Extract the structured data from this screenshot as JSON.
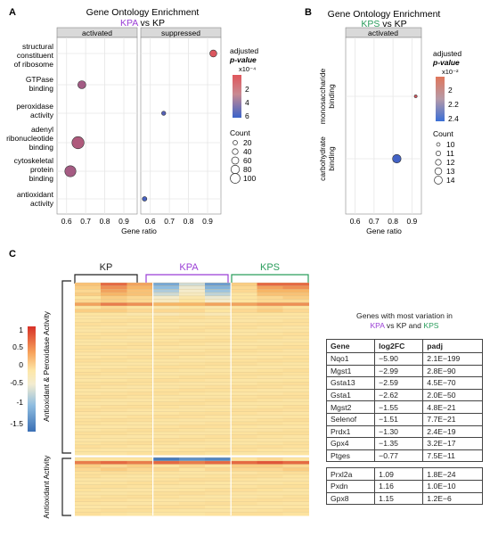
{
  "panels": {
    "a_label": "A",
    "b_label": "B",
    "c_label": "C"
  },
  "panel_a": {
    "title": "Gene Ontology Enrichment",
    "subtitle_left": "KPA",
    "subtitle_vs": " vs ",
    "subtitle_right": "KP",
    "facet_left": "activated",
    "facet_right": "suppressed",
    "xlabel": "Gene ratio",
    "colorbar_title_1": "adjusted",
    "colorbar_title_2": "p-value",
    "colorbar_exp": "x10⁻⁴",
    "colorbar_ticks": [
      "2",
      "4",
      "6"
    ],
    "size_title": "Count",
    "size_ticks": [
      "20",
      "40",
      "60",
      "80",
      "100"
    ]
  },
  "panel_b": {
    "title": "Gene Ontology Enrichment",
    "subtitle_left": "KPS",
    "subtitle_vs": " vs ",
    "subtitle_right": "KP",
    "facet": "activated",
    "xlabel": "Gene ratio",
    "colorbar_title_1": "adjusted",
    "colorbar_title_2": "p-value",
    "colorbar_exp": "x10⁻²",
    "colorbar_ticks": [
      "2",
      "2.2",
      "2.4"
    ],
    "size_title": "Count",
    "size_ticks": [
      "10",
      "11",
      "12",
      "13",
      "14"
    ]
  },
  "panel_c": {
    "group_labels": [
      "KP",
      "KPA",
      "KPS"
    ],
    "row_label_1": "Antioxidant & Peroxidase Activity",
    "row_label_2": "Antioxidant Activity",
    "legend_ticks": [
      "1",
      "0.5",
      "0",
      "-0.5",
      "-1",
      "-1.5"
    ],
    "table_title_1": "Genes with most variation in",
    "table_title_2_a": "KPA",
    "table_title_2_b": " vs ",
    "table_title_2_c": "KP",
    "table_title_2_d": " and ",
    "table_title_2_e": "KPS",
    "table_headers": [
      "Gene",
      "log2FC",
      "padj"
    ],
    "table_block_1": [
      [
        "Nqo1",
        "−5.90",
        "2.1E−199"
      ],
      [
        "Mgst1",
        "−2.99",
        "2.8E−90"
      ],
      [
        "Gsta13",
        "−2.59",
        "4.5E−70"
      ],
      [
        "Gsta1",
        "−2.62",
        "2.0E−50"
      ],
      [
        "Mgst2",
        "−1.55",
        "4.8E−21"
      ],
      [
        "Selenof",
        "−1.51",
        "7.7E−21"
      ],
      [
        "Prdx1",
        "−1.30",
        "2.4E−19"
      ],
      [
        "Gpx4",
        "−1.35",
        "3.2E−17"
      ],
      [
        "Ptges",
        "−0.77",
        "7.5E−11"
      ]
    ],
    "table_block_2": [
      [
        "Prxl2a",
        "1.09",
        "1.8E−24"
      ],
      [
        "Pxdn",
        "1.16",
        "1.0E−10"
      ],
      [
        "Gpx8",
        "1.15",
        "1.2E−6"
      ]
    ]
  },
  "colors": {
    "kpa": "#9b3fd6",
    "kps": "#2a9d5c",
    "kp": "#222222",
    "facet_bg": "#d9d9d9",
    "grid": "#e6e6e6",
    "dot_high": "#e0565b",
    "dot_low": "#3b63c9"
  },
  "chart_data": [
    {
      "type": "scatter",
      "title": "Gene Ontology Enrichment",
      "xlabel": "Gene ratio",
      "categories": [
        "structural constituent of ribosome",
        "GTPase binding",
        "peroxidase activity",
        "adenyl ribonucleotide binding",
        "cytoskeletal protein binding",
        "antioxidant activity"
      ],
      "facets": [
        {
          "name": "activated",
          "xlim": [
            0.55,
            0.97
          ],
          "xticks": [
            0.6,
            0.7,
            0.8,
            0.9
          ],
          "points": [
            {
              "category": "GTPase binding",
              "x": 0.68,
              "count": 60,
              "padj": 0.00025
            },
            {
              "category": "adenyl ribonucleotide binding",
              "x": 0.66,
              "count": 100,
              "padj": 0.0002
            },
            {
              "category": "cytoskeletal protein binding",
              "x": 0.62,
              "count": 90,
              "padj": 0.00024
            }
          ]
        },
        {
          "name": "suppressed",
          "xlim": [
            0.55,
            0.97
          ],
          "xticks": [
            0.6,
            0.7,
            0.8,
            0.9
          ],
          "points": [
            {
              "category": "structural constituent of ribosome",
              "x": 0.93,
              "count": 50,
              "padj": 3e-05
            },
            {
              "category": "peroxidase activity",
              "x": 0.67,
              "count": 22,
              "padj": 0.00055
            },
            {
              "category": "antioxidant activity",
              "x": 0.57,
              "count": 26,
              "padj": 0.0006
            }
          ]
        }
      ],
      "color_scale": {
        "name": "adjusted p-value",
        "range": [
          1e-05,
          0.00065
        ]
      },
      "size_scale": {
        "name": "Count",
        "ticks": [
          20,
          40,
          60,
          80,
          100
        ]
      }
    },
    {
      "type": "scatter",
      "title": "Gene Ontology Enrichment",
      "xlabel": "Gene ratio",
      "categories": [
        "monosaccharide binding",
        "carbohydrate binding"
      ],
      "facets": [
        {
          "name": "activated",
          "xlim": [
            0.55,
            0.95
          ],
          "xticks": [
            0.6,
            0.7,
            0.8,
            0.9
          ],
          "points": [
            {
              "category": "monosaccharide binding",
              "x": 0.92,
              "count": 10,
              "padj": 0.0197
            },
            {
              "category": "carbohydrate binding",
              "x": 0.82,
              "count": 14,
              "padj": 0.0243
            }
          ]
        }
      ],
      "color_scale": {
        "name": "adjusted p-value",
        "range": [
          0.0195,
          0.0245
        ]
      },
      "size_scale": {
        "name": "Count",
        "ticks": [
          10,
          11,
          12,
          13,
          14
        ]
      }
    },
    {
      "type": "heatmap",
      "columns": [
        "KP",
        "KP",
        "KP",
        "KPA",
        "KPA",
        "KPA",
        "KPS",
        "KPS",
        "KPS"
      ],
      "row_groups": [
        {
          "name": "Antioxidant & Peroxidase Activity",
          "rows": 52
        },
        {
          "name": "Antioxidant Activity",
          "rows": 17
        }
      ],
      "color_range": [
        -1.7,
        1.2
      ],
      "rows_top": [
        [
          0.4,
          0.9,
          0.6,
          -1.2,
          -0.6,
          -1.3,
          0.3,
          0.9,
          0.9
        ],
        [
          0.3,
          0.7,
          0.5,
          -1.0,
          -0.4,
          -1.1,
          0.2,
          0.6,
          0.7
        ],
        [
          0.2,
          0.6,
          0.4,
          -0.8,
          -0.3,
          -0.9,
          0.2,
          0.5,
          0.5
        ],
        [
          0.3,
          0.5,
          0.4,
          -0.6,
          -0.2,
          -0.7,
          0.1,
          0.4,
          0.4
        ],
        [
          0.1,
          0.3,
          0.2,
          -0.3,
          0.0,
          -0.4,
          0.1,
          0.2,
          0.3
        ],
        [
          0.2,
          0.3,
          0.2,
          -0.2,
          0.1,
          -0.3,
          0.1,
          0.2,
          0.2
        ],
        [
          0.6,
          0.8,
          0.7,
          0.5,
          0.5,
          0.6,
          0.6,
          0.7,
          0.7
        ],
        [
          0.1,
          0.2,
          0.1,
          0.0,
          0.1,
          0.0,
          0.1,
          0.2,
          0.1
        ],
        [
          0.3,
          0.3,
          0.2,
          0.2,
          0.2,
          0.1,
          0.2,
          0.3,
          0.2
        ],
        [
          0.1,
          0.1,
          0.0,
          -0.1,
          0.0,
          -0.1,
          0.1,
          0.1,
          0.1
        ]
      ],
      "rows_bottom": [
        [
          0.1,
          0.1,
          0.1,
          -1.6,
          -1.4,
          -1.5,
          0.1,
          0.2,
          0.1
        ],
        [
          0.8,
          0.9,
          0.8,
          0.9,
          0.8,
          0.9,
          0.9,
          1.0,
          0.9
        ],
        [
          0.3,
          0.2,
          0.3,
          0.1,
          0.2,
          0.1,
          0.3,
          0.3,
          0.2
        ],
        [
          0.2,
          0.3,
          0.2,
          0.2,
          0.1,
          0.2,
          0.2,
          0.2,
          0.3
        ]
      ],
      "baseline": 0.1
    }
  ]
}
